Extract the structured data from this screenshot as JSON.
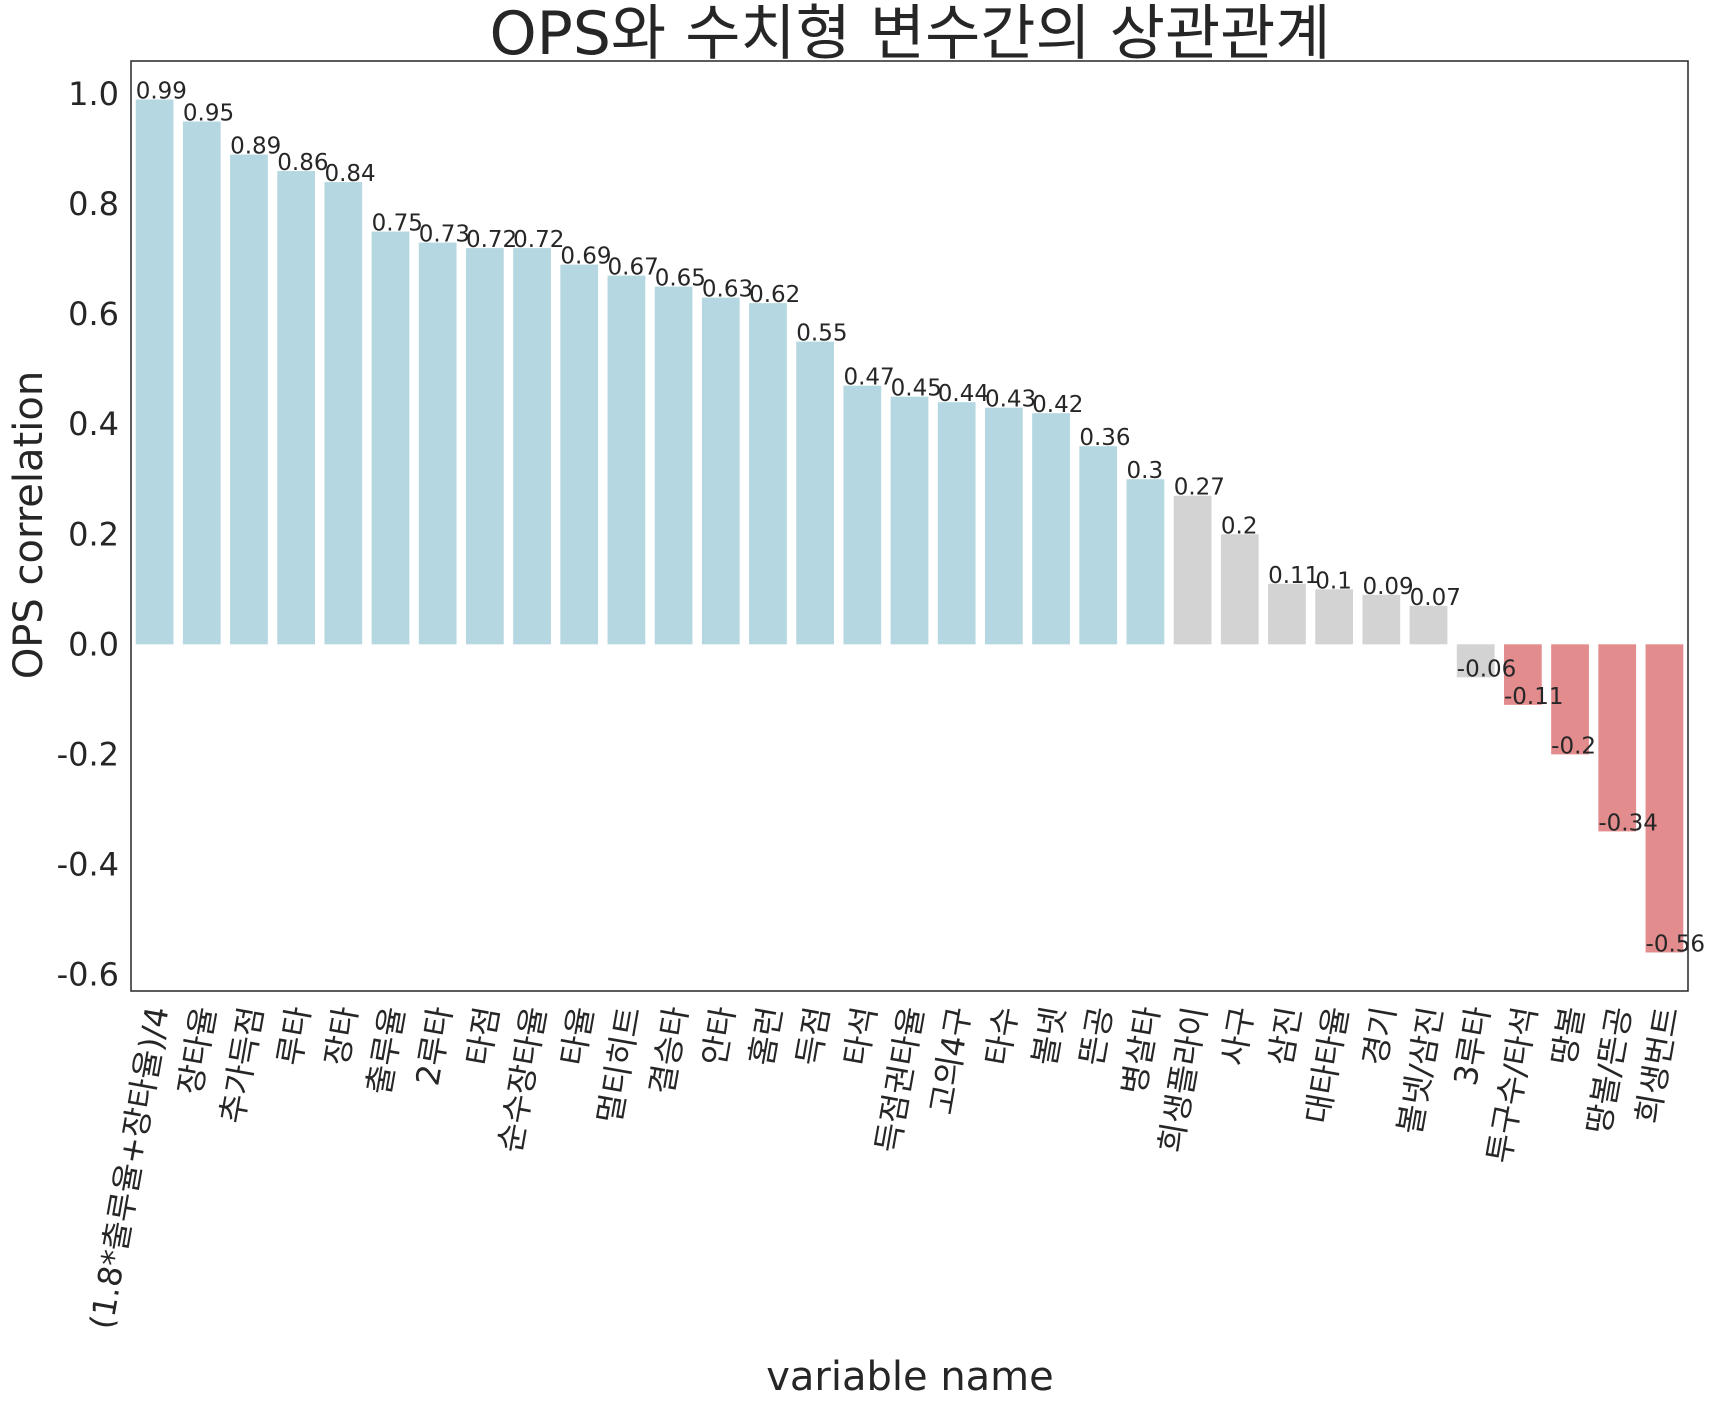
{
  "chart_data": {
    "type": "bar",
    "title": "OPS와 수치형 변수간의 상관관계",
    "xlabel": "variable name",
    "ylabel": "OPS correlation",
    "ylim": [
      -0.63,
      1.06
    ],
    "yticks": [
      1.0,
      0.8,
      0.6,
      0.4,
      0.2,
      0.0,
      -0.2,
      -0.4,
      -0.6
    ],
    "ytick_labels": [
      "1.0",
      "0.8",
      "0.6",
      "0.4",
      "0.2",
      "0.0",
      "-0.2",
      "-0.4",
      "-0.6"
    ],
    "grid": false,
    "legend": "none",
    "categories": [
      "(1.8*출루율+장타율)/4",
      "장타율",
      "추가득점",
      "루타",
      "장타",
      "출루율",
      "2루타",
      "타점",
      "순수장타율",
      "타율",
      "멀티히트",
      "결승타",
      "안타",
      "홈런",
      "득점",
      "타석",
      "득점권타율",
      "고의4구",
      "타수",
      "볼넷",
      "뜬공",
      "병살타",
      "희생플라이",
      "사구",
      "삼진",
      "대타타율",
      "경기",
      "볼넷/삼진",
      "3루타",
      "투구수/타석",
      "땅볼",
      "땅볼/뜬공",
      "희생번트"
    ],
    "values": [
      0.99,
      0.95,
      0.89,
      0.86,
      0.84,
      0.75,
      0.73,
      0.72,
      0.72,
      0.69,
      0.67,
      0.65,
      0.63,
      0.62,
      0.55,
      0.47,
      0.45,
      0.44,
      0.43,
      0.42,
      0.36,
      0.3,
      0.27,
      0.2,
      0.11,
      0.1,
      0.09,
      0.07,
      -0.06,
      -0.11,
      -0.2,
      -0.34,
      -0.56
    ],
    "value_labels": [
      "0.99",
      "0.95",
      "0.89",
      "0.86",
      "0.84",
      "0.75",
      "0.73",
      "0.72",
      "0.72",
      "0.69",
      "0.67",
      "0.65",
      "0.63",
      "0.62",
      "0.55",
      "0.47",
      "0.45",
      "0.44",
      "0.43",
      "0.42",
      "0.36",
      "0.3",
      "0.27",
      "0.2",
      "0.11",
      "0.1",
      "0.09",
      "0.07",
      "-0.06",
      "-0.11",
      "-0.2",
      "-0.34",
      "-0.56"
    ],
    "colors": {
      "strong_positive": "#b4d7e1",
      "weak": "#d3d3d3",
      "negative": "#e38c8e",
      "axis": "#262626",
      "text": "#262626"
    },
    "color_rule": "value >= 0.3 -> strong_positive; -0.1 < value < 0.3 -> weak; value <= -0.1 -> negative"
  }
}
